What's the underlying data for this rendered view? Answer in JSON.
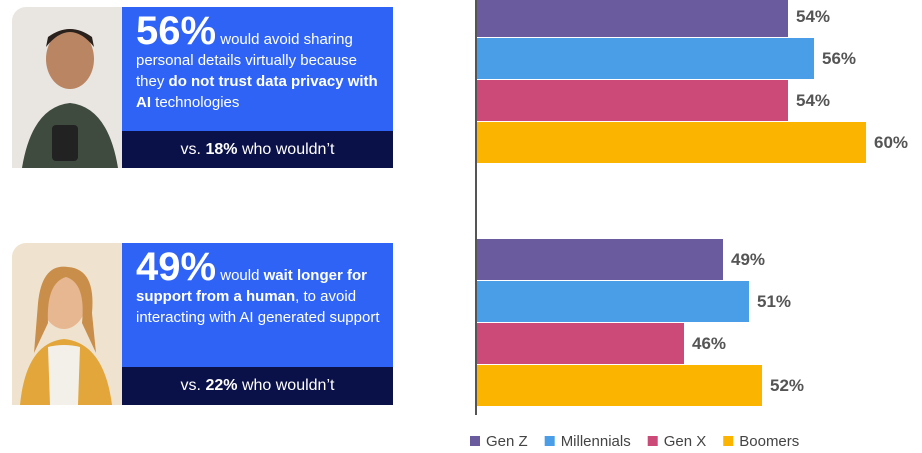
{
  "cards": [
    {
      "stat": "56%",
      "text": [
        "would avoid sharing personal details virtually because they",
        "do not trust data privacy with AI",
        "technologies"
      ],
      "footer": [
        "vs.",
        "18%",
        "who wouldn’t"
      ]
    },
    {
      "stat": "49%",
      "text": [
        "would",
        "wait longer for support from a human",
        ", to avoid interacting with AI generated support"
      ],
      "footer": [
        "vs.",
        "22%",
        "who wouldn’t"
      ]
    }
  ],
  "chart_data": {
    "type": "hbar",
    "categories": [
      null,
      null
    ],
    "xlim": [
      30,
      62
    ],
    "series": [
      {
        "name": "Gen Z",
        "color": "#6a5a9e",
        "values": [
          54,
          49
        ],
        "value_labels": [
          "54%",
          "49%"
        ]
      },
      {
        "name": "Millennials",
        "color": "#4a9ee8",
        "values": [
          56,
          51
        ],
        "value_labels": [
          "56%",
          "51%"
        ]
      },
      {
        "name": "Gen X",
        "color": "#cc4a78",
        "values": [
          54,
          46
        ],
        "value_labels": [
          "54%",
          "46%"
        ]
      },
      {
        "name": "Boomers",
        "color": "#fbb400",
        "values": [
          60,
          52
        ],
        "value_labels": [
          "60%",
          "52%"
        ]
      }
    ]
  }
}
